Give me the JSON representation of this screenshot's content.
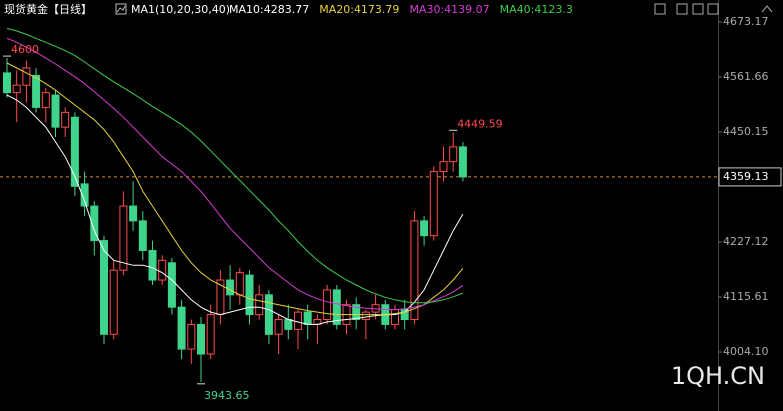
{
  "chart_data": {
    "type": "candlestick",
    "title": "现货黄金【日线】",
    "indicator": "MA1(10,20,30,40)",
    "watermark": "1QH.CN",
    "up_color": "#ff4d4d",
    "down_color": "#3fd48c",
    "current_price": 4359.13,
    "current_price_color": "#e08a2c",
    "ylim": [
      3906.8,
      4681.3
    ],
    "yticks": [
      {
        "value": 4004.1,
        "label": "4004.10"
      },
      4115.61,
      4227.12,
      4450.15,
      4561.66,
      4673.17
    ],
    "grid": false,
    "open": [
      4570,
      4530,
      4545,
      4565,
      4500,
      4525,
      4460,
      4480,
      4345,
      4300,
      4230,
      4040,
      4170,
      4300,
      4270,
      4210,
      4150,
      4185,
      4095,
      4010,
      4060,
      4000,
      4080,
      4150,
      4120,
      4160,
      4080,
      4120,
      4040,
      4070,
      4050,
      4085,
      4060,
      4070,
      4130,
      4060,
      4100,
      4070,
      4085,
      4100,
      4060,
      4090,
      4070,
      4270,
      4240,
      4370,
      4390,
      4420
    ],
    "high": [
      4600,
      4575,
      4595.01,
      4580,
      4540,
      4535,
      4500,
      4490,
      4370,
      4310,
      4240,
      4190,
      4330,
      4350,
      4290,
      4230,
      4200,
      4195,
      4110,
      4070,
      4075,
      4100,
      4170,
      4180,
      4175,
      4170,
      4140,
      4130,
      4080,
      4100,
      4090,
      4100,
      4080,
      4140,
      4140,
      4110,
      4115,
      4090,
      4120,
      4110,
      4100,
      4110,
      4290,
      4280,
      4380,
      4420,
      4449.59,
      4430
    ],
    "low": [
      4520,
      4470,
      4510,
      4490,
      4470,
      4440,
      4440,
      4320,
      4280,
      4200,
      4020,
      4030,
      4160,
      4250,
      4190,
      4140,
      4140,
      4080,
      3990,
      3980,
      3943.65,
      3990,
      4060,
      4090,
      4100,
      4060,
      4070,
      4020,
      4000,
      4030,
      4010,
      4030,
      4020,
      4060,
      4050,
      4040,
      4050,
      4030,
      4070,
      4050,
      4050,
      4050,
      4060,
      4220,
      4230,
      4350,
      4370,
      4350
    ],
    "close": [
      4530,
      4545,
      4580,
      4500,
      4530,
      4460,
      4490,
      4340,
      4300,
      4230,
      4040,
      4170,
      4300,
      4270,
      4210,
      4150,
      4190,
      4095,
      4010,
      4060,
      4000,
      4080,
      4150,
      4120,
      4165,
      4080,
      4120,
      4040,
      4070,
      4050,
      4085,
      4060,
      4070,
      4130,
      4060,
      4100,
      4070,
      4085,
      4100,
      4060,
      4090,
      4070,
      4270,
      4240,
      4370,
      4390,
      4420,
      4359.13
    ],
    "series": [
      {
        "name": "MA10:4283.77",
        "color": "#ffffff",
        "values": [
          4525,
          4515,
          4500,
          4480,
          4460,
          4430,
          4400,
          4360,
          4310,
          4250,
          4210,
          4190,
          4185,
          4180,
          4180,
          4175,
          4165,
          4150,
          4130,
          4110,
          4095,
          4085,
          4080,
          4085,
          4090,
          4095,
          4095,
          4090,
          4080,
          4070,
          4065,
          4060,
          4060,
          4065,
          4068,
          4070,
          4072,
          4075,
          4078,
          4080,
          4080,
          4085,
          4105,
          4130,
          4170,
          4210,
          4250,
          4283.77
        ]
      },
      {
        "name": "MA20:4173.79",
        "color": "#e6d23a",
        "values": [
          4590,
          4580,
          4570,
          4560,
          4548,
          4535,
          4520,
          4505,
          4490,
          4475,
          4455,
          4430,
          4400,
          4370,
          4330,
          4300,
          4270,
          4240,
          4210,
          4185,
          4165,
          4150,
          4140,
          4130,
          4120,
          4112,
          4108,
          4104,
          4100,
          4096,
          4092,
          4088,
          4085,
          4082,
          4080,
          4080,
          4080,
          4080,
          4080,
          4080,
          4082,
          4085,
          4092,
          4100,
          4115,
          4130,
          4150,
          4173.79
        ]
      },
      {
        "name": "MA30:4139.07",
        "color": "#d63ad6",
        "values": [
          4640,
          4632,
          4622,
          4612,
          4600,
          4588,
          4575,
          4562,
          4548,
          4532,
          4515,
          4498,
          4480,
          4460,
          4440,
          4420,
          4400,
          4385,
          4370,
          4350,
          4330,
          4305,
          4280,
          4255,
          4235,
          4215,
          4195,
          4175,
          4160,
          4145,
          4130,
          4120,
          4112,
          4106,
          4102,
          4098,
          4095,
          4093,
          4092,
          4090,
          4090,
          4092,
          4095,
          4100,
          4108,
          4116,
          4126,
          4139.07
        ]
      },
      {
        "name": "MA40:4123.3",
        "color": "#3ccf4a",
        "values": [
          4660,
          4655,
          4648,
          4640,
          4632,
          4624,
          4615,
          4605,
          4592,
          4578,
          4565,
          4552,
          4540,
          4528,
          4515,
          4502,
          4490,
          4478,
          4465,
          4450,
          4432,
          4412,
          4392,
          4372,
          4352,
          4332,
          4312,
          4292,
          4270,
          4250,
          4228,
          4208,
          4190,
          4175,
          4162,
          4150,
          4140,
          4130,
          4122,
          4115,
          4110,
          4106,
          4104,
          4104,
          4106,
          4110,
          4116,
          4123.3
        ]
      }
    ]
  }
}
